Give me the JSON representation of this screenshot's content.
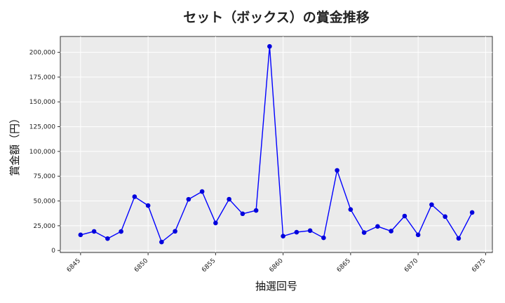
{
  "chart_data": {
    "type": "line",
    "title": "セット（ボックス）の賞金推移",
    "xlabel": "抽選回号",
    "ylabel": "賞金額（円）",
    "xlim": [
      6843.5,
      6875.5
    ],
    "ylim": [
      -2000,
      216000
    ],
    "xticks": [
      6845,
      6850,
      6855,
      6860,
      6865,
      6870,
      6875
    ],
    "xtick_labels": [
      "6845",
      "6850",
      "6855",
      "6860",
      "6865",
      "6870",
      "6875"
    ],
    "yticks": [
      0,
      25000,
      50000,
      75000,
      100000,
      125000,
      150000,
      175000,
      200000
    ],
    "ytick_labels": [
      "0",
      "25,000",
      "50,000",
      "75,000",
      "100,000",
      "125,000",
      "150,000",
      "175,000",
      "200,000"
    ],
    "grid": true,
    "background": "#ebebeb",
    "line_color": "#0000ff",
    "marker_color": "#0000dd",
    "x": [
      6845,
      6846,
      6847,
      6848,
      6849,
      6850,
      6851,
      6852,
      6853,
      6854,
      6855,
      6856,
      6857,
      6858,
      6859,
      6860,
      6861,
      6862,
      6863,
      6864,
      6865,
      6866,
      6867,
      6868,
      6869,
      6870,
      6871,
      6872,
      6873,
      6874
    ],
    "values": [
      15800,
      19300,
      12000,
      19200,
      54300,
      45400,
      8600,
      19400,
      51700,
      59500,
      27800,
      51800,
      37100,
      40400,
      206000,
      14500,
      18500,
      20100,
      12800,
      80900,
      41400,
      18100,
      24300,
      19600,
      34800,
      15800,
      46300,
      34200,
      12300,
      38400
    ]
  }
}
